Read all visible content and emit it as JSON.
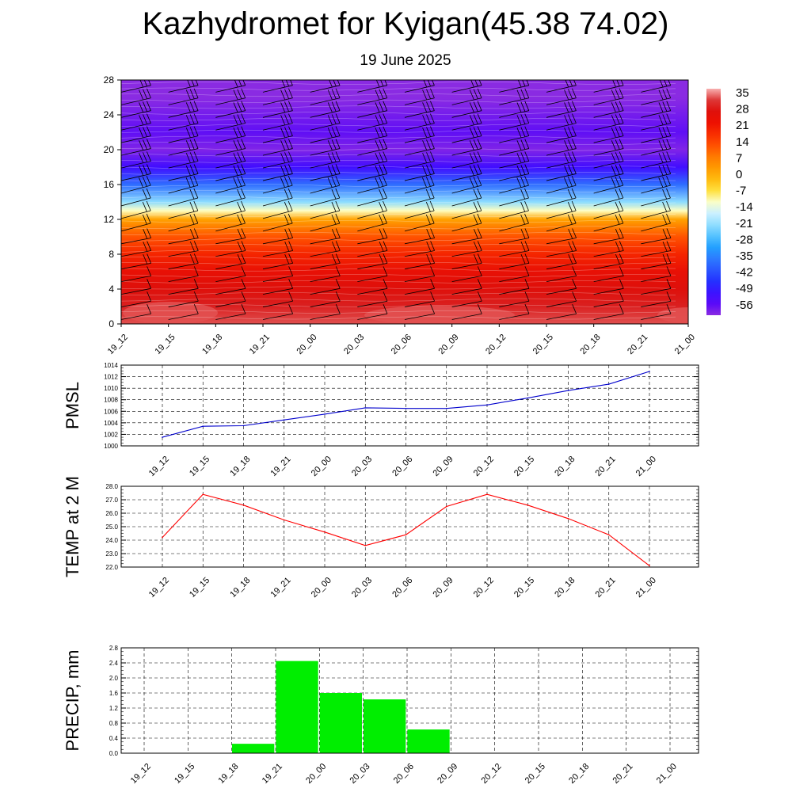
{
  "title": "Kazhydromet for Kyigan(45.38 74.02)",
  "subtitle": "19 June 2025",
  "time_labels": [
    "19_12",
    "19_15",
    "19_18",
    "19_21",
    "20_00",
    "20_03",
    "20_06",
    "20_09",
    "20_12",
    "20_15",
    "20_18",
    "20_21",
    "21_00"
  ],
  "colorbar_labels": [
    "35",
    "28",
    "21",
    "14",
    "7",
    "0",
    "-7",
    "-14",
    "-21",
    "-28",
    "-35",
    "-42",
    "-49",
    "-56"
  ],
  "chart_data": [
    {
      "type": "heatmap",
      "description_key": "temperature-height cross section with wind barbs",
      "x": [
        "19_12",
        "19_15",
        "19_18",
        "19_21",
        "20_00",
        "20_03",
        "20_06",
        "20_09",
        "20_12",
        "20_15",
        "20_18",
        "20_21",
        "21_00"
      ],
      "ylim": [
        0,
        28
      ],
      "yticks": [
        0,
        4,
        8,
        12,
        16,
        20,
        24,
        28
      ],
      "colorbar": {
        "min": -56,
        "max": 35,
        "ticks": [
          35,
          28,
          21,
          14,
          7,
          0,
          -7,
          -14,
          -21,
          -28,
          -35,
          -42,
          -49,
          -56
        ]
      },
      "profile": {
        "height": [
          0,
          2,
          4,
          6,
          8,
          10,
          12,
          13,
          14,
          16,
          18,
          20,
          22,
          24,
          26,
          28
        ],
        "value": [
          32,
          29,
          26,
          23,
          18,
          12,
          2,
          -10,
          -20,
          -35,
          -48,
          -55,
          -52,
          -54,
          -56,
          -56
        ]
      }
    },
    {
      "type": "line",
      "ylabel": "PMSL",
      "x": [
        "19_12",
        "19_15",
        "19_18",
        "19_21",
        "20_00",
        "20_03",
        "20_06",
        "20_09",
        "20_12",
        "20_15",
        "20_18",
        "20_21",
        "21_00"
      ],
      "values": [
        1001.5,
        1003.4,
        1003.5,
        1004.5,
        1005.5,
        1006.6,
        1006.5,
        1006.5,
        1007.1,
        1008.3,
        1009.6,
        1010.7,
        1012.9
      ],
      "ylim": [
        1000,
        1014
      ],
      "yticks": [
        "1000",
        "1002",
        "1004",
        "1006",
        "1008",
        "1010",
        "1012",
        "1014"
      ],
      "color": "#0000cc",
      "grid": true
    },
    {
      "type": "line",
      "ylabel": "TEMP at 2 M",
      "x": [
        "19_12",
        "19_15",
        "19_18",
        "19_21",
        "20_00",
        "20_03",
        "20_06",
        "20_09",
        "20_12",
        "20_15",
        "20_18",
        "20_21",
        "21_00"
      ],
      "values": [
        24.2,
        27.4,
        26.6,
        25.5,
        24.6,
        23.6,
        24.4,
        26.5,
        27.4,
        26.6,
        25.6,
        24.4,
        22.1
      ],
      "ylim": [
        22,
        28
      ],
      "yticks": [
        "22.0",
        "23.0",
        "24.0",
        "25.0",
        "26.0",
        "27.0",
        "28.0"
      ],
      "color": "#ff0000",
      "grid": true
    },
    {
      "type": "bar",
      "ylabel": "PRECIP, mm",
      "categories": [
        "19_12",
        "19_15",
        "19_18",
        "19_21",
        "20_00",
        "20_03",
        "20_06",
        "20_09",
        "20_12",
        "20_15",
        "20_18",
        "20_21",
        "21_00"
      ],
      "values": [
        0,
        0,
        0.25,
        2.45,
        1.6,
        1.43,
        0.63,
        0,
        0,
        0,
        0,
        0,
        0
      ],
      "ylim": [
        0,
        2.8
      ],
      "yticks": [
        "0.0",
        "0.4",
        "0.8",
        "1.2",
        "1.6",
        "2.0",
        "2.4",
        "2.8"
      ],
      "color": "#00ee00",
      "grid": true
    }
  ]
}
